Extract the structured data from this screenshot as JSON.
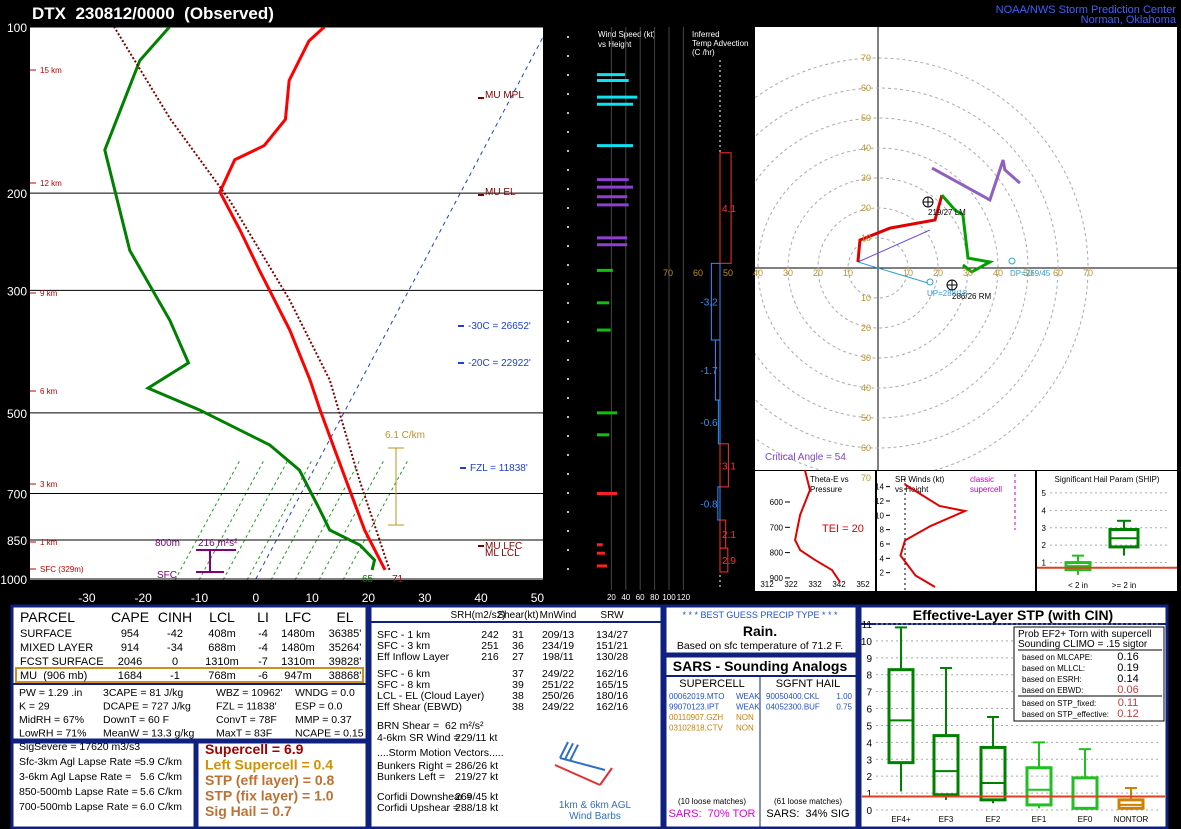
{
  "header": {
    "title": "DTX  230812/0000  (Observed)",
    "org": "NOAA/NWS Storm Prediction Center",
    "location": "Norman, Oklahoma"
  },
  "skewt": {
    "type": "skewt",
    "ylim": [
      1000,
      100
    ],
    "yticks": [
      100,
      200,
      300,
      500,
      700,
      850,
      1000
    ],
    "xlim": [
      -40.1,
      51
    ],
    "xticks": [
      -30,
      -20,
      -10,
      0,
      10,
      20,
      30,
      40,
      50
    ],
    "height_labels": [
      "15 km",
      "12 km",
      "9 km",
      "6 km",
      "3 km",
      "1 km",
      "SFC (329m)"
    ],
    "annotations": [
      "MU MPL",
      "MU EL",
      "-30C = 26652'",
      "-20C = 22922'",
      "FZL = 11838'",
      "MU LFC",
      "ML LCL",
      "6.1 C/km",
      "800m",
      "216 m²s²",
      "SFC",
      "65",
      "71"
    ],
    "temperature": {
      "color": "#ff0000",
      "pressure": [
        963,
        886,
        815,
        690,
        584,
        494,
        436,
        354,
        276,
        233,
        199,
        174,
        164,
        147,
        125,
        106,
        100
      ],
      "values": [
        22.1,
        18.4,
        14.7,
        8.3,
        1.9,
        -4.5,
        -9.1,
        -17.4,
        -28.4,
        -35.7,
        -42.8,
        -43.2,
        -39.3,
        -38,
        -41,
        -41.2,
        -39.8
      ]
    },
    "dewpoint": {
      "color": "#008000",
      "pressure": [
        963,
        924,
        868,
        815,
        750,
        635,
        572,
        494,
        451,
        406,
        340,
        254,
        167,
        115,
        100
      ],
      "values": [
        19.8,
        19.3,
        15.3,
        8.5,
        4.9,
        -2.5,
        -10.1,
        -25.9,
        -37.1,
        -32.3,
        -39.6,
        -53.3,
        -67.2,
        -69.4,
        -67.3
      ]
    },
    "parcel": {
      "color": "#800000",
      "pressure": [
        963,
        662,
        436,
        312,
        206,
        147,
        100
      ],
      "values": [
        22.9,
        9.1,
        -5.6,
        -20.3,
        -40.3,
        -58.4,
        -77.1
      ]
    }
  },
  "wind_speed": {
    "title": "Wind Speed (kt)",
    "subtitle": "vs Height",
    "xticks": [
      20,
      40,
      60,
      80,
      100,
      120
    ],
    "pressure": [
      947,
      898,
      867,
      700,
      548,
      500,
      354,
      316,
      276,
      248,
      241,
      210,
      203,
      195,
      189,
      164,
      138,
      134,
      125,
      122
    ],
    "values": [
      14,
      11,
      8,
      28,
      17,
      28,
      19,
      17,
      22,
      42,
      42,
      44,
      42,
      50,
      44,
      50,
      50,
      56,
      44,
      39
    ]
  },
  "temp_advection": {
    "title": [
      "Inferred",
      "Temp Advection",
      "(C /hr)"
    ],
    "top": [
      169,
      268,
      369,
      474,
      569,
      681,
      782,
      879
    ],
    "bottom": [
      268,
      369,
      474,
      569,
      681,
      782,
      879,
      971
    ],
    "values": [
      4.1,
      -3.2,
      -1.7,
      -0.6,
      3.1,
      -0.8,
      2.1,
      2.9
    ]
  },
  "hodograph": {
    "rings": [
      10,
      20,
      30,
      40,
      50,
      60,
      70
    ],
    "critical_angle": "Critical Angle = 54",
    "series": [
      {
        "color": "#e00000",
        "u": [
          -6.7,
          -6,
          4,
          19,
          21.3
        ],
        "v": [
          2,
          9.3,
          13.3,
          16,
          24.3
        ]
      },
      {
        "color": "#00a000",
        "u": [
          21.3,
          25.7,
          28.3,
          30,
          37.3,
          31.3,
          28.3
        ],
        "v": [
          24.3,
          19.3,
          17.7,
          3.3,
          2,
          -1.3,
          1
        ]
      },
      {
        "color": "#9060c0",
        "u": [
          18,
          37.3,
          41.7,
          42.3,
          47.3
        ],
        "v": [
          33.3,
          22.7,
          36,
          32.7,
          28.3
        ]
      }
    ],
    "labels": [
      "219/27 LM",
      "286/26 RM",
      "UP=288/18",
      "DP=269/45"
    ]
  },
  "thetae": {
    "title": [
      "Theta-E vs",
      "Pressure"
    ],
    "yticks": [
      600,
      700,
      800,
      900
    ],
    "xticks": [
      312,
      322,
      332,
      342,
      352
    ],
    "tei": "TEI = 20",
    "pressure": [
      474,
      553,
      651,
      750,
      790,
      829,
      869,
      916
    ],
    "values": [
      327.8,
      329.9,
      325.8,
      323.7,
      325.8,
      332,
      339.1,
      342.4
    ]
  },
  "sr_winds": {
    "title": [
      "SR Winds (kt)",
      "vs Height"
    ],
    "note": [
      "classic",
      "supercell"
    ],
    "yticks": [
      2,
      4,
      6,
      8,
      10,
      12,
      14
    ],
    "height": [
      14.3,
      11.3,
      10.6,
      8.5,
      6.5,
      4.4,
      1.6,
      0
    ],
    "values": [
      18,
      41,
      58,
      35,
      18,
      15,
      25,
      38
    ]
  },
  "ship": {
    "title": "Significant Hail Param (SHIP)",
    "yticks": [
      1,
      2,
      3,
      4,
      5
    ],
    "ylim": [
      0,
      5.8
    ],
    "categories": [
      "< 2 in",
      ">= 2 in"
    ],
    "boxes": [
      {
        "low": 0.3,
        "q1": 0.6,
        "median": 0.8,
        "q3": 1.0,
        "high": 1.4,
        "color": "#20c020"
      },
      {
        "low": 1.4,
        "q1": 1.9,
        "median": 2.4,
        "q3": 2.9,
        "high": 3.4,
        "color": "#008000"
      }
    ],
    "current": 0.7
  },
  "parcel_table": {
    "columns": [
      "PARCEL",
      "CAPE",
      "CINH",
      "LCL",
      "LI",
      "LFC",
      "EL"
    ],
    "rows": [
      [
        "SURFACE",
        "954",
        "-42",
        "408m",
        "-4",
        "1480m",
        "36385'"
      ],
      [
        "MIXED LAYER",
        "914",
        "-34",
        "688m",
        "-4",
        "1480m",
        "35264'"
      ],
      [
        "FCST SURFACE",
        "2046",
        "0",
        "1310m",
        "-7",
        "1310m",
        "39828'"
      ],
      [
        "MU  (906 mb)",
        "1684",
        "-1",
        "768m",
        "-6",
        "947m",
        "38868'"
      ]
    ]
  },
  "indices": [
    "PW = 1.29 .in",
    "3CAPE = 81 J/kg",
    "WBZ = 10962'",
    "WNDG = 0.0",
    "K = 29",
    "DCAPE = 727 J/kg",
    "FZL = 11838'",
    "ESP = 0.0",
    "MidRH = 67%",
    "DownT = 60 F",
    "ConvT = 78F",
    "MMP = 0.37",
    "LowRH = 71%",
    "MeanW = 13.3 g/kg",
    "MaxT = 83F",
    "NCAPE = 0.15",
    "SigSevere = 17620 m3/s3"
  ],
  "lapse_rates": [
    {
      "label": "Sfc-3km Agl Lapse Rate =",
      "value": "5.9 C/km"
    },
    {
      "label": "3-6km Agl Lapse Rate =",
      "value": "5.6 C/km"
    },
    {
      "label": "850-500mb Lapse Rate =",
      "value": "5.6 C/km"
    },
    {
      "label": "700-500mb Lapse Rate =",
      "value": "6.0 C/km"
    }
  ],
  "severe_params": [
    {
      "text": "Supercell = 6.9",
      "color": "#a00000"
    },
    {
      "text": "Left Supercell = 0.4",
      "color": "#d09000"
    },
    {
      "text": "STP (eff layer) = 0.8",
      "color": "#c07030"
    },
    {
      "text": "STP (fix layer) = 1.0",
      "color": "#c07030"
    },
    {
      "text": "Sig Hail = 0.7",
      "color": "#c07030"
    }
  ],
  "kinematics": {
    "columns": [
      "SRH(m2/s2)",
      "Shear(kt)",
      "MnWind",
      "SRW"
    ],
    "rows": [
      [
        "SFC - 1 km",
        "242",
        "31",
        "209/13",
        "134/27"
      ],
      [
        "SFC - 3 km",
        "251",
        "36",
        "234/19",
        "151/21"
      ],
      [
        "Eff Inflow Layer",
        "216",
        "27",
        "198/11",
        "130/28"
      ],
      [
        "SFC - 6 km",
        "37",
        "249/22",
        "162/16"
      ],
      [
        "SFC - 8 km",
        "39",
        "251/22",
        "165/15"
      ],
      [
        "LCL - EL (Cloud Layer)",
        "38",
        "250/26",
        "180/16"
      ],
      [
        "Eff Shear (EBWD)",
        "38",
        "249/22",
        "162/16"
      ]
    ],
    "brn": "BRN Shear =  62 m²/s²",
    "sr_wind": {
      "label": "4-6km SR Wind =",
      "value": "229/11 kt"
    },
    "motion_header": "....Storm Motion Vectors.....",
    "vectors": [
      {
        "label": "Bunkers Right =",
        "value": "286/26 kt"
      },
      {
        "label": "Bunkers Left =",
        "value": "219/27 kt"
      },
      {
        "label": "Corfidi Downshear =",
        "value": "269/45 kt"
      },
      {
        "label": "Corfidi Upshear =",
        "value": "288/18 kt"
      }
    ],
    "barb_note": [
      "1km & 6km AGL",
      "Wind Barbs"
    ]
  },
  "precip": {
    "header": "* * * BEST GUESS PRECIP TYPE * * *",
    "type": "Rain.",
    "basis": "Based on sfc temperature of 71.2 F."
  },
  "sars": {
    "title": "SARS - Sounding Analogs",
    "columns": [
      "SUPERCELL",
      "SGFNT HAIL"
    ],
    "supercell": [
      {
        "date": "00062019.MTO",
        "class": "WEAK",
        "color": "#2050d0"
      },
      {
        "date": "99070123.IPT",
        "class": "WEAK",
        "color": "#2050d0"
      },
      {
        "date": "00110907.GZH",
        "class": "NON",
        "color": "#d08000"
      },
      {
        "date": "03102818.CTV",
        "class": "NON",
        "color": "#d08000"
      }
    ],
    "hail": [
      {
        "date": "90050400.CKL",
        "size": "1.00"
      },
      {
        "date": "04052300.BUF",
        "size": "0.75"
      }
    ],
    "supercell_loose": "(10 loose matches)",
    "hail_loose": "(61 loose matches)",
    "supercell_result": "SARS:  70% TOR",
    "hail_result": "SARS:  34% SIG"
  },
  "stp": {
    "type": "box",
    "title": "Effective-Layer STP (with CIN)",
    "ylim": [
      0,
      11
    ],
    "yticks": [
      0,
      1,
      2,
      3,
      4,
      5,
      6,
      7,
      8,
      9,
      10,
      11
    ],
    "categories": [
      "EF4+",
      "EF3",
      "EF2",
      "EF1",
      "EF0",
      "NONTOR"
    ],
    "boxes": [
      {
        "low": 1.1,
        "q1": 2.8,
        "median": 5.3,
        "q3": 8.3,
        "high": 10.8,
        "color": "#008000"
      },
      {
        "low": 0.6,
        "q1": 0.9,
        "median": 2.3,
        "q3": 4.4,
        "high": 8.4,
        "color": "#008000"
      },
      {
        "low": 0.4,
        "q1": 0.6,
        "median": 1.6,
        "q3": 3.7,
        "high": 5.5,
        "color": "#008000"
      },
      {
        "low": 0.1,
        "q1": 0.3,
        "median": 1.2,
        "q3": 2.5,
        "high": 4.0,
        "color": "#20c020"
      },
      {
        "low": 0,
        "q1": 0.1,
        "median": 0.8,
        "q3": 1.9,
        "high": 3.6,
        "color": "#20c020"
      },
      {
        "low": 0,
        "q1": 0.1,
        "median": 0.3,
        "q3": 0.6,
        "high": 1.3,
        "color": "#d08000"
      }
    ],
    "current": 0.8,
    "stats_title": [
      "Prob EF2+ Torn with supercell",
      "Sounding CLIMO = .15 sigtor"
    ],
    "stats": [
      {
        "label": "based on MLCAPE:",
        "value": "0.16"
      },
      {
        "label": "based on MLLCL:",
        "value": "0.19"
      },
      {
        "label": "based on ESRH:",
        "value": "0.14"
      },
      {
        "label": "based on EBWD:",
        "value": "0.06"
      },
      {
        "label": "based on STP_fixed:",
        "value": "0.11"
      },
      {
        "label": "based on STP_effective:",
        "value": "0.12"
      }
    ]
  }
}
